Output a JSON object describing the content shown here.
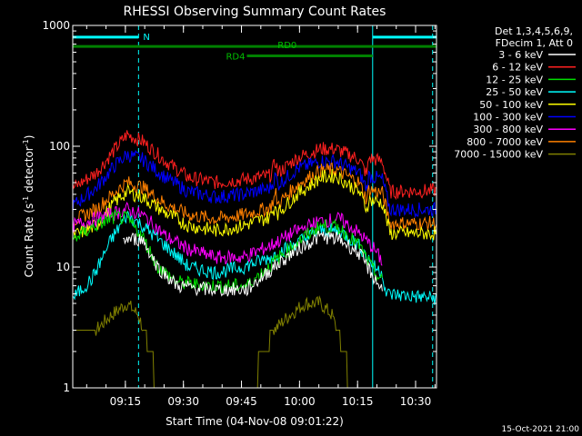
{
  "chart_data": {
    "type": "line",
    "title": "RHESSI Observing Summary Count Rates",
    "xlabel": "Start Time (04-Nov-08 09:01:22)",
    "ylabel_main": "Count Rate (s",
    "ylabel_sup1": "-1",
    "ylabel_mid": " detector",
    "ylabel_sup2": "-1",
    "ylabel_end": ")",
    "y_scale": "log",
    "ylim": [
      1,
      1000
    ],
    "xlim_minutes": [
      0,
      94
    ],
    "x_ticks": [
      {
        "minute": 13.6,
        "label": "09:15"
      },
      {
        "minute": 28.6,
        "label": "09:30"
      },
      {
        "minute": 43.6,
        "label": "09:45"
      },
      {
        "minute": 58.6,
        "label": "10:00"
      },
      {
        "minute": 73.6,
        "label": "10:15"
      },
      {
        "minute": 88.6,
        "label": "10:30"
      }
    ],
    "y_ticks": [
      {
        "value": 1,
        "label": "1"
      },
      {
        "value": 10,
        "label": "10"
      },
      {
        "value": 100,
        "label": "100"
      },
      {
        "value": 1000,
        "label": "1000"
      }
    ],
    "legend_header": [
      "Det 1,3,4,5,6,9,",
      "FDecim 1, Att 0"
    ],
    "legend_placement": "right",
    "series": [
      {
        "name": "3 - 6 keV",
        "color": "#ffffff",
        "points": [
          [
            13,
            17
          ],
          [
            18,
            17
          ],
          [
            22,
            10
          ],
          [
            27,
            7
          ],
          [
            35,
            6.5
          ],
          [
            45,
            6.5
          ],
          [
            52,
            10
          ],
          [
            58,
            14
          ],
          [
            64,
            18
          ],
          [
            69,
            17
          ],
          [
            74,
            13
          ],
          [
            78,
            8
          ],
          [
            80,
            6.5
          ]
        ]
      },
      {
        "name": "6 - 12 keV",
        "color": "#ff2020",
        "points": [
          [
            0,
            45
          ],
          [
            6,
            60
          ],
          [
            11,
            95
          ],
          [
            14,
            125
          ],
          [
            18,
            110
          ],
          [
            24,
            75
          ],
          [
            30,
            55
          ],
          [
            37,
            50
          ],
          [
            44,
            53
          ],
          [
            51,
            57
          ],
          [
            52.5,
            75
          ],
          [
            53,
            60
          ],
          [
            58,
            80
          ],
          [
            64,
            95
          ],
          [
            68,
            95
          ],
          [
            74,
            78
          ],
          [
            76,
            58
          ],
          [
            76.5,
            80
          ],
          [
            80,
            75
          ],
          [
            82,
            42
          ],
          [
            94,
            43
          ]
        ]
      },
      {
        "name": "12 - 25 keV",
        "color": "#00e000",
        "points": [
          [
            0,
            17
          ],
          [
            6,
            22
          ],
          [
            11,
            26
          ],
          [
            14,
            25
          ],
          [
            18,
            18
          ],
          [
            22,
            10
          ],
          [
            27,
            7.5
          ],
          [
            35,
            7
          ],
          [
            45,
            7
          ],
          [
            52,
            11
          ],
          [
            58,
            16
          ],
          [
            64,
            22
          ],
          [
            69,
            21
          ],
          [
            74,
            15
          ],
          [
            78,
            9
          ],
          [
            80,
            7.5
          ]
        ]
      },
      {
        "name": "25 - 50 keV",
        "color": "#00ffff",
        "points": [
          [
            0,
            5.5
          ],
          [
            5,
            8
          ],
          [
            10,
            17
          ],
          [
            14,
            27
          ],
          [
            18,
            22
          ],
          [
            24,
            15
          ],
          [
            30,
            10
          ],
          [
            37,
            9
          ],
          [
            44,
            10
          ],
          [
            51,
            12
          ],
          [
            58,
            16
          ],
          [
            64,
            20
          ],
          [
            69,
            20
          ],
          [
            74,
            15
          ],
          [
            78,
            10
          ],
          [
            80,
            9
          ],
          [
            81,
            6
          ],
          [
            94,
            5.5
          ]
        ]
      },
      {
        "name": "50 - 100 keV",
        "color": "#ffff00",
        "points": [
          [
            0,
            18
          ],
          [
            6,
            22
          ],
          [
            11,
            35
          ],
          [
            14,
            42
          ],
          [
            18,
            38
          ],
          [
            24,
            28
          ],
          [
            30,
            22
          ],
          [
            37,
            20
          ],
          [
            44,
            22
          ],
          [
            51,
            26
          ],
          [
            52.5,
            33
          ],
          [
            53,
            28
          ],
          [
            58,
            40
          ],
          [
            64,
            55
          ],
          [
            68,
            57
          ],
          [
            74,
            42
          ],
          [
            76,
            30
          ],
          [
            76.5,
            36
          ],
          [
            80,
            34
          ],
          [
            82,
            19
          ],
          [
            94,
            19
          ]
        ]
      },
      {
        "name": "100 - 300 keV",
        "color": "#0000ff",
        "points": [
          [
            0,
            32
          ],
          [
            6,
            45
          ],
          [
            11,
            70
          ],
          [
            14,
            85
          ],
          [
            18,
            78
          ],
          [
            24,
            55
          ],
          [
            30,
            42
          ],
          [
            37,
            38
          ],
          [
            44,
            40
          ],
          [
            51,
            45
          ],
          [
            52.5,
            57
          ],
          [
            53,
            48
          ],
          [
            58,
            65
          ],
          [
            64,
            75
          ],
          [
            68,
            75
          ],
          [
            74,
            60
          ],
          [
            76,
            45
          ],
          [
            76.5,
            57
          ],
          [
            80,
            53
          ],
          [
            82,
            30
          ],
          [
            94,
            30
          ]
        ]
      },
      {
        "name": "300 - 800 keV",
        "color": "#ff00ff",
        "points": [
          [
            0,
            22
          ],
          [
            6,
            25
          ],
          [
            11,
            28
          ],
          [
            14,
            30
          ],
          [
            18,
            27
          ],
          [
            24,
            18
          ],
          [
            30,
            14
          ],
          [
            37,
            12
          ],
          [
            44,
            12
          ],
          [
            51,
            15
          ],
          [
            58,
            20
          ],
          [
            64,
            24
          ],
          [
            69,
            25
          ],
          [
            74,
            19
          ],
          [
            78,
            14
          ],
          [
            80,
            11
          ]
        ]
      },
      {
        "name": "800 - 7000 keV",
        "color": "#ff8000",
        "points": [
          [
            0,
            24
          ],
          [
            6,
            30
          ],
          [
            11,
            42
          ],
          [
            14,
            50
          ],
          [
            18,
            46
          ],
          [
            24,
            33
          ],
          [
            30,
            27
          ],
          [
            37,
            25
          ],
          [
            44,
            27
          ],
          [
            51,
            31
          ],
          [
            52.5,
            40
          ],
          [
            53,
            33
          ],
          [
            58,
            48
          ],
          [
            64,
            63
          ],
          [
            68,
            64
          ],
          [
            74,
            50
          ],
          [
            76,
            36
          ],
          [
            76.5,
            44
          ],
          [
            80,
            41
          ],
          [
            82,
            23
          ],
          [
            94,
            23
          ]
        ]
      },
      {
        "name": "7000 - 15000 keV",
        "color": "#808000",
        "points": [
          [
            0,
            2.5
          ],
          [
            6,
            3
          ],
          [
            10,
            4
          ],
          [
            14,
            5
          ],
          [
            17,
            4
          ],
          [
            20,
            2
          ],
          [
            22,
            1
          ],
          [
            38,
            1
          ],
          [
            42,
            1
          ],
          [
            48,
            1.5
          ],
          [
            52,
            3
          ],
          [
            56,
            4
          ],
          [
            60,
            5
          ],
          [
            64,
            5
          ],
          [
            67,
            4
          ],
          [
            70,
            2
          ],
          [
            72,
            1
          ],
          [
            94,
            1
          ]
        ]
      }
    ],
    "annotations": [
      {
        "text": "N",
        "color": "#00ffff"
      },
      {
        "text": "RD0",
        "color": "#00c000"
      },
      {
        "text": "RD4",
        "color": "#00c000"
      }
    ],
    "state_bars": [
      {
        "name": "night",
        "color": "#00ffff",
        "ranges": [
          [
            0,
            17
          ],
          [
            77.5,
            94
          ]
        ],
        "level": 800
      },
      {
        "name": "rd0",
        "color": "#008000",
        "ranges": [
          [
            0,
            77.5
          ],
          [
            77.5,
            94
          ]
        ],
        "level": 670
      },
      {
        "name": "rd4",
        "color": "#008000",
        "ranges": [
          [
            45,
            77.5
          ]
        ],
        "level": 560
      }
    ],
    "vlines": [
      {
        "minute": 17,
        "color": "#00ffff",
        "style": "dashed"
      },
      {
        "minute": 77.5,
        "color": "#00ffff",
        "style": "solid"
      },
      {
        "minute": 93,
        "color": "#00ffff",
        "style": "dashed"
      }
    ]
  },
  "footer": {
    "stamp": "15-Oct-2021 21:00"
  }
}
